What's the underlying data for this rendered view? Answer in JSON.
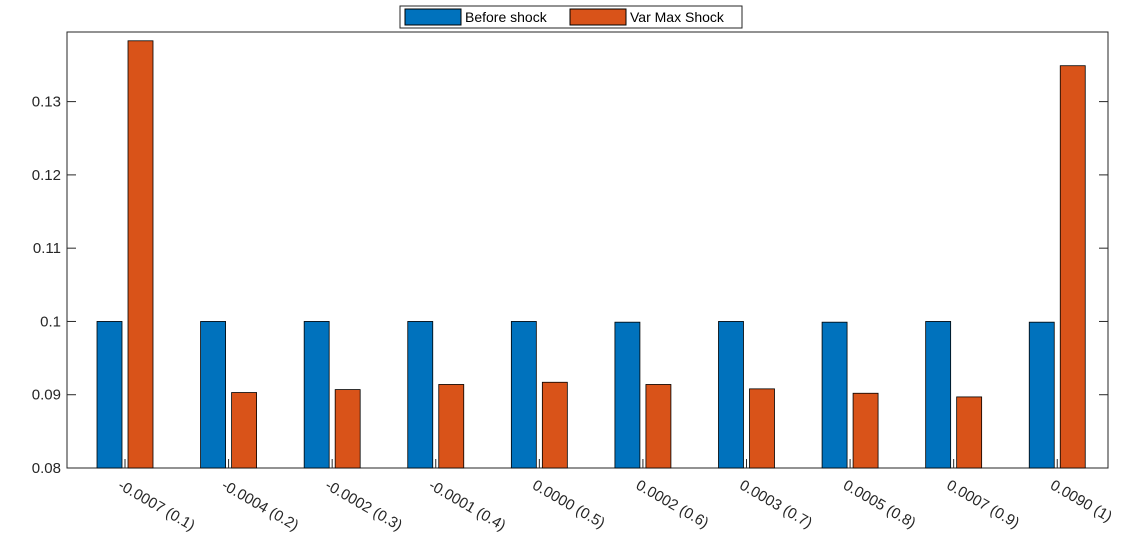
{
  "chart_data": {
    "type": "bar",
    "categories": [
      "-0.0007 (0.1)",
      "-0.0004 (0.2)",
      "-0.0002 (0.3)",
      "-0.0001 (0.4)",
      "0.0000 (0.5)",
      "0.0002 (0.6)",
      "0.0003 (0.7)",
      "0.0005 (0.8)",
      "0.0007 (0.9)",
      "0.0090 (1)"
    ],
    "series": [
      {
        "name": "Before shock",
        "color": "#0072BD",
        "values": [
          0.1,
          0.1,
          0.1,
          0.1,
          0.1,
          0.0999,
          0.1,
          0.0999,
          0.1,
          0.0999
        ]
      },
      {
        "name": "Var Max Shock",
        "color": "#D95319",
        "values": [
          0.1383,
          0.0903,
          0.0907,
          0.0914,
          0.0917,
          0.0914,
          0.0908,
          0.0902,
          0.0897,
          0.1349
        ]
      }
    ],
    "yticks": [
      "0.08",
      "0.09",
      "0.1",
      "0.11",
      "0.12",
      "0.13"
    ],
    "ylim": [
      0.08,
      0.1395
    ],
    "xlabel": "",
    "ylabel": "",
    "title": "",
    "grid": false,
    "legend_position": "top-center",
    "xtick_rotation": -30
  }
}
